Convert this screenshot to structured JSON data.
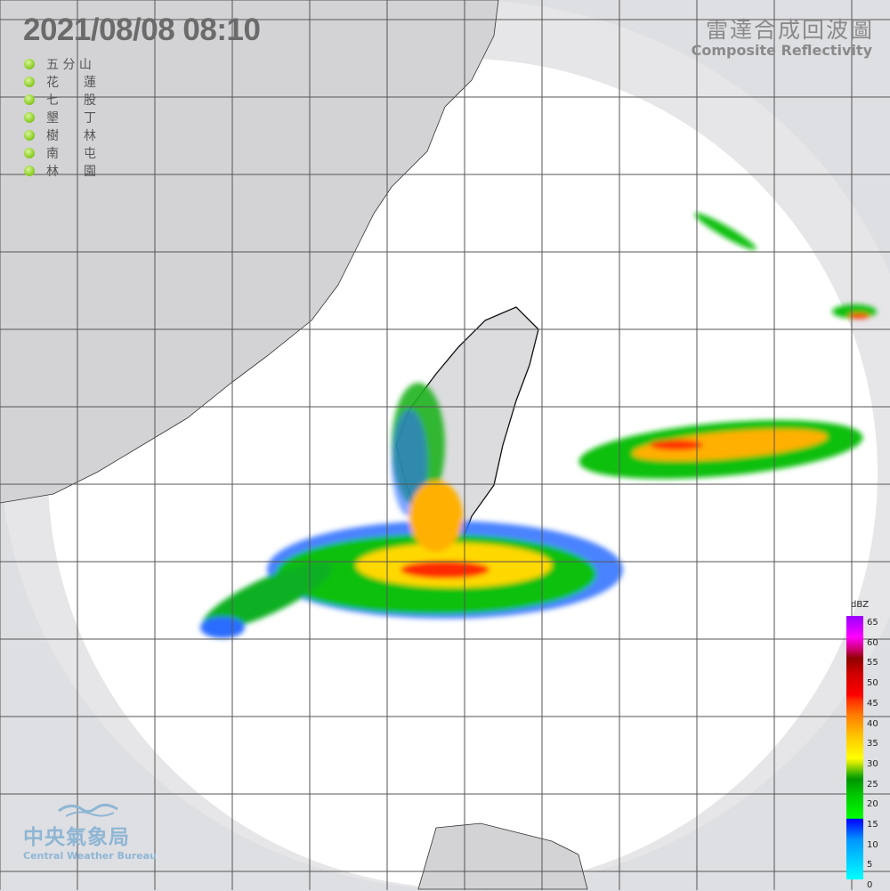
{
  "header": {
    "datetime": "2021/08/08  08:10",
    "title_zh": "雷達合成回波圖",
    "title_en": "Composite Reflectivity"
  },
  "stations": [
    {
      "name": "五 分 山",
      "status": "online"
    },
    {
      "name": "花　　蓮",
      "status": "online"
    },
    {
      "name": "七　　股",
      "status": "online"
    },
    {
      "name": "墾　　丁",
      "status": "online"
    },
    {
      "name": "樹　　林",
      "status": "online"
    },
    {
      "name": "南　　屯",
      "status": "online"
    },
    {
      "name": "林　　園",
      "status": "online"
    }
  ],
  "legend": {
    "unit": "dBZ",
    "ticks": [
      "65",
      "60",
      "55",
      "50",
      "45",
      "40",
      "35",
      "30",
      "25",
      "20",
      "15",
      "10",
      "5",
      "0"
    ]
  },
  "logo": {
    "zh": "中央氣象局",
    "en": "Central Weather Bureau"
  },
  "colors": {
    "background": "#dedfe3",
    "coverage": "#ffffff",
    "land": "#cfcfd3",
    "station_dot": "#8fcf2a"
  }
}
